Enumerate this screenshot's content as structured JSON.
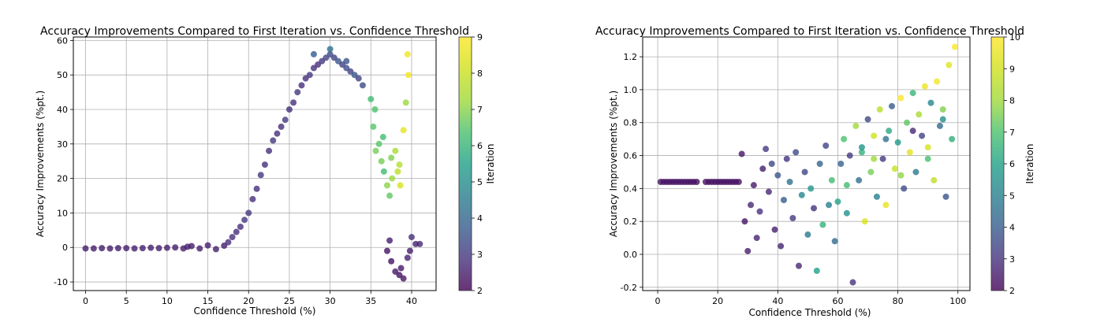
{
  "chart_data": [
    {
      "type": "scatter",
      "title": "Accuracy Improvements Compared to First Iteration vs. Confidence Threshold",
      "xlabel": "Confidence Threshold (%)",
      "ylabel": "Accuracy Improvements (%pt.)",
      "xlim": [
        -1.5,
        43
      ],
      "ylim": [
        -12.5,
        61
      ],
      "xticks": [
        0,
        5,
        10,
        15,
        20,
        25,
        30,
        35,
        40
      ],
      "yticks": [
        -10,
        0,
        10,
        20,
        30,
        40,
        50,
        60
      ],
      "grid": true,
      "colorbar": {
        "label": "Iteration",
        "min": 2,
        "max": 9,
        "ticks": [
          2,
          3,
          4,
          5,
          6,
          7,
          8,
          9
        ],
        "colormap": "viridis"
      },
      "series": [
        {
          "x": [
            0,
            1,
            2,
            3,
            4,
            5,
            6,
            7,
            8,
            9,
            10,
            11,
            12,
            12.5,
            13,
            14,
            15,
            16,
            17
          ],
          "y": [
            -0.3,
            -0.3,
            -0.2,
            -0.3,
            -0.2,
            -0.2,
            -0.3,
            -0.2,
            -0.1,
            -0.2,
            -0.1,
            0,
            -0.3,
            0.2,
            0.4,
            -0.3,
            0.6,
            -0.5,
            0.5
          ],
          "iteration": [
            2.5,
            2.5,
            2.5,
            2.5,
            2.5,
            2.5,
            2.5,
            2.5,
            2.5,
            2.5,
            2.5,
            2.5,
            2.5,
            2.5,
            2.5,
            2.5,
            2.5,
            2.5,
            2.5
          ]
        },
        {
          "x": [
            17.5,
            18,
            18.5,
            19,
            19.5,
            20,
            20.5,
            21,
            21.5,
            22,
            22.5,
            23,
            23.5,
            24,
            24.5,
            25,
            25.5,
            26,
            26.5,
            27,
            27.5,
            28,
            28.5,
            29
          ],
          "y": [
            1.5,
            3,
            4.5,
            6,
            8,
            10,
            14,
            17,
            21,
            24,
            28,
            31,
            33,
            35,
            37,
            40,
            42,
            45,
            47,
            49,
            50,
            52,
            53,
            54
          ],
          "iteration": [
            2.8,
            2.8,
            2.8,
            2.8,
            3,
            3,
            2.8,
            2.8,
            3,
            2.8,
            2.8,
            3,
            2.8,
            2.8,
            3,
            2.8,
            2.8,
            3,
            2.8,
            2.8,
            3,
            2.8,
            2.8,
            3
          ]
        },
        {
          "x": [
            29.5,
            30,
            30.5,
            31,
            31.5,
            32,
            32.5,
            33,
            33.5,
            34,
            28,
            30,
            32
          ],
          "y": [
            55,
            56,
            55,
            54,
            53,
            52,
            51,
            50,
            49,
            47,
            56,
            57.5,
            54
          ],
          "iteration": [
            3.2,
            3.4,
            3.2,
            3.6,
            3.2,
            3.4,
            3.2,
            3.6,
            3.2,
            3.4,
            3.8,
            4.2,
            3.6
          ]
        },
        {
          "x": [
            35,
            35.3,
            35.6,
            36,
            36.3,
            36.6,
            37,
            37.3,
            37.6,
            38,
            38.3,
            38.6,
            39,
            39.3,
            39.6,
            35.5,
            36.5,
            37.5,
            38.5,
            39.5
          ],
          "y": [
            43,
            35,
            28,
            30,
            25,
            22,
            18,
            15,
            20,
            28,
            22,
            18,
            34,
            42,
            50,
            40,
            32,
            26,
            24,
            56
          ],
          "iteration": [
            6.2,
            6.5,
            6.8,
            6.5,
            6.8,
            6.2,
            7,
            6.6,
            7.2,
            7.4,
            7.8,
            8.2,
            8.5,
            7.2,
            8.8,
            6.4,
            6.2,
            6.9,
            7.6,
            8.7
          ]
        },
        {
          "x": [
            37,
            37.5,
            38,
            38.5,
            39,
            39.5,
            40,
            40.5,
            41,
            37.3,
            38.7,
            39.8
          ],
          "y": [
            -1,
            -4,
            -7,
            -8,
            -9,
            -3,
            3,
            1,
            1,
            2,
            -6,
            -1
          ],
          "iteration": [
            2.3,
            2.3,
            2.4,
            2.3,
            2.4,
            2.6,
            2.8,
            2.6,
            2.7,
            2.5,
            2.4,
            2.5
          ]
        }
      ]
    },
    {
      "type": "scatter",
      "title": "Accuracy Improvements Compared to First Iteration vs. Confidence Threshold",
      "xlabel": "Confidence Threshold (%)",
      "ylabel": "Accuracy Improvements (%pt.)",
      "xlim": [
        -5,
        104
      ],
      "ylim": [
        -0.22,
        1.32
      ],
      "xticks": [
        0,
        20,
        40,
        60,
        80,
        100
      ],
      "yticks": [
        -0.2,
        0.0,
        0.2,
        0.4,
        0.6,
        0.8,
        1.0,
        1.2
      ],
      "grid": true,
      "colorbar": {
        "label": "Iteration",
        "min": 2,
        "max": 10,
        "ticks": [
          2,
          3,
          4,
          5,
          6,
          7,
          8,
          9,
          10
        ],
        "colormap": "viridis"
      },
      "series": [
        {
          "x": [
            1,
            2,
            3,
            4,
            5,
            6,
            7,
            8,
            9,
            10,
            11,
            12,
            13,
            16,
            17,
            18,
            19,
            20,
            21,
            22,
            23,
            24,
            25,
            26,
            27
          ],
          "y": [
            0.44,
            0.44,
            0.44,
            0.44,
            0.44,
            0.44,
            0.44,
            0.44,
            0.44,
            0.44,
            0.44,
            0.44,
            0.44,
            0.44,
            0.44,
            0.44,
            0.44,
            0.44,
            0.44,
            0.44,
            0.44,
            0.44,
            0.44,
            0.44,
            0.44
          ],
          "iteration": [
            2.3,
            2.3,
            2.3,
            2.3,
            2.3,
            2.3,
            2.3,
            2.3,
            2.3,
            2.3,
            2.3,
            2.3,
            2.3,
            2.3,
            2.3,
            2.3,
            2.3,
            2.3,
            2.3,
            2.3,
            2.3,
            2.3,
            2.3,
            2.3,
            2.3
          ]
        },
        {
          "x": [
            28,
            29,
            30,
            31,
            32,
            33,
            34,
            35,
            36,
            37,
            38,
            39,
            40,
            41,
            42,
            43,
            44,
            45,
            46,
            47,
            48,
            49,
            50,
            51,
            52,
            53,
            54,
            55,
            56,
            57,
            58,
            59
          ],
          "y": [
            0.61,
            0.2,
            0.02,
            0.3,
            0.42,
            0.1,
            0.26,
            0.52,
            0.64,
            0.38,
            0.55,
            0.15,
            0.48,
            0.05,
            0.33,
            0.58,
            0.44,
            0.22,
            0.62,
            -0.07,
            0.36,
            0.5,
            0.12,
            0.4,
            0.28,
            -0.1,
            0.55,
            0.18,
            0.66,
            0.3,
            0.45,
            0.08
          ],
          "iteration": [
            2.4,
            2.4,
            2.6,
            2.8,
            2.5,
            2.7,
            3,
            2.6,
            3.2,
            2.8,
            3.5,
            2.6,
            3.8,
            2.7,
            4,
            3,
            4.5,
            3.2,
            3.6,
            2.8,
            5.2,
            3.4,
            4.8,
            5.6,
            3,
            6,
            4.2,
            6.5,
            3.4,
            5,
            6.8,
            4.4
          ]
        },
        {
          "x": [
            60,
            61,
            62,
            63,
            64,
            65,
            66,
            67,
            68,
            69,
            70,
            71,
            72,
            73,
            74,
            75,
            76,
            77,
            78,
            79,
            80,
            81,
            82,
            83,
            84,
            85,
            86,
            87,
            88,
            89,
            90,
            91,
            92,
            93,
            94,
            95,
            96,
            97,
            98,
            99,
            63,
            68,
            72,
            76,
            81,
            85,
            90,
            95
          ],
          "y": [
            0.32,
            0.55,
            0.7,
            0.25,
            0.6,
            -0.17,
            0.78,
            0.45,
            0.62,
            0.2,
            0.82,
            0.5,
            0.72,
            0.35,
            0.88,
            0.58,
            0.3,
            0.75,
            0.9,
            0.52,
            0.68,
            0.95,
            0.4,
            0.8,
            0.62,
            0.98,
            0.5,
            0.85,
            0.72,
            1.02,
            0.58,
            0.92,
            0.45,
            1.05,
            0.78,
            0.88,
            0.35,
            1.15,
            0.7,
            1.26,
            0.42,
            0.65,
            0.58,
            0.7,
            0.48,
            0.75,
            0.65,
            0.82
          ],
          "iteration": [
            6,
            4.2,
            7,
            5.5,
            3.2,
            3,
            8,
            4.5,
            6.5,
            9.2,
            3.5,
            7.5,
            9,
            5,
            8.5,
            3.2,
            9.5,
            6.2,
            4,
            8.8,
            5.8,
            10,
            3.6,
            7.2,
            9.4,
            6.6,
            4.8,
            8.2,
            3.4,
            9.6,
            7,
            5.2,
            8.6,
            9.8,
            4.4,
            7.6,
            3.8,
            9.3,
            6.4,
            9.9,
            6.8,
            5.6,
            8,
            4.6,
            7.8,
            2.8,
            9.1,
            5.4
          ]
        }
      ]
    }
  ]
}
